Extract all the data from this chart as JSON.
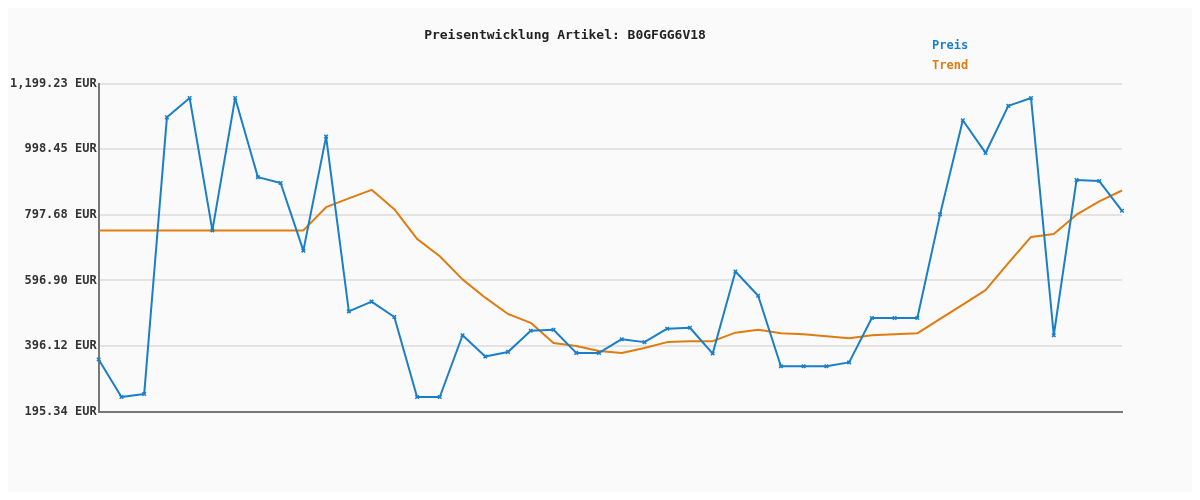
{
  "chart_data": {
    "type": "line",
    "title": "Preisentwicklung Artikel: B0GFGG6V18",
    "categories": [
      null,
      null,
      null,
      null,
      null,
      null,
      null,
      null,
      null,
      null,
      null,
      null,
      null,
      null,
      null,
      null,
      null,
      null,
      null,
      null,
      null,
      null,
      null,
      null,
      null,
      null,
      null,
      null,
      null,
      null,
      null,
      null,
      null,
      null,
      null,
      null,
      null,
      null,
      null,
      null,
      null,
      null,
      null,
      null,
      null,
      null
    ],
    "series": [
      {
        "name": "Preis",
        "color": "#1a7fc7",
        "marker": "cross",
        "values": [
          355,
          240,
          249,
          1096,
          1155,
          750,
          1155,
          913,
          895,
          688,
          1037,
          502,
          532,
          485,
          240,
          240,
          429,
          364,
          378,
          443,
          446,
          375,
          375,
          417,
          408,
          449,
          452,
          373,
          624,
          550,
          334,
          334,
          334,
          346,
          482,
          482,
          482,
          799,
          1087,
          987,
          1131,
          1155,
          429,
          904,
          901,
          810
        ]
      },
      {
        "name": "Trend",
        "color": "#e07c0f",
        "marker": "none",
        "values": [
          750,
          750,
          750,
          750,
          750,
          750,
          750,
          750,
          750,
          750,
          821,
          848,
          874,
          815,
          724,
          671,
          600,
          544,
          494,
          467,
          405,
          396,
          381,
          375,
          390,
          408,
          411,
          411,
          437,
          446,
          435,
          432,
          426,
          420,
          429,
          432,
          435,
          479,
          523,
          567,
          650,
          730,
          739,
          798,
          839,
          872
        ]
      }
    ],
    "ylim": [
      195.34,
      1199.23
    ],
    "yticks": [
      {
        "value": 195.34,
        "label": "195.34 EUR"
      },
      {
        "value": 396.12,
        "label": "396.12 EUR"
      },
      {
        "value": 596.9,
        "label": "596.90 EUR"
      },
      {
        "value": 797.68,
        "label": "797.68 EUR"
      },
      {
        "value": 998.45,
        "label": "998.45 EUR"
      },
      {
        "value": 1199.23,
        "label": "1,199.23 EUR"
      }
    ],
    "grid": "y",
    "legend": "top right"
  }
}
